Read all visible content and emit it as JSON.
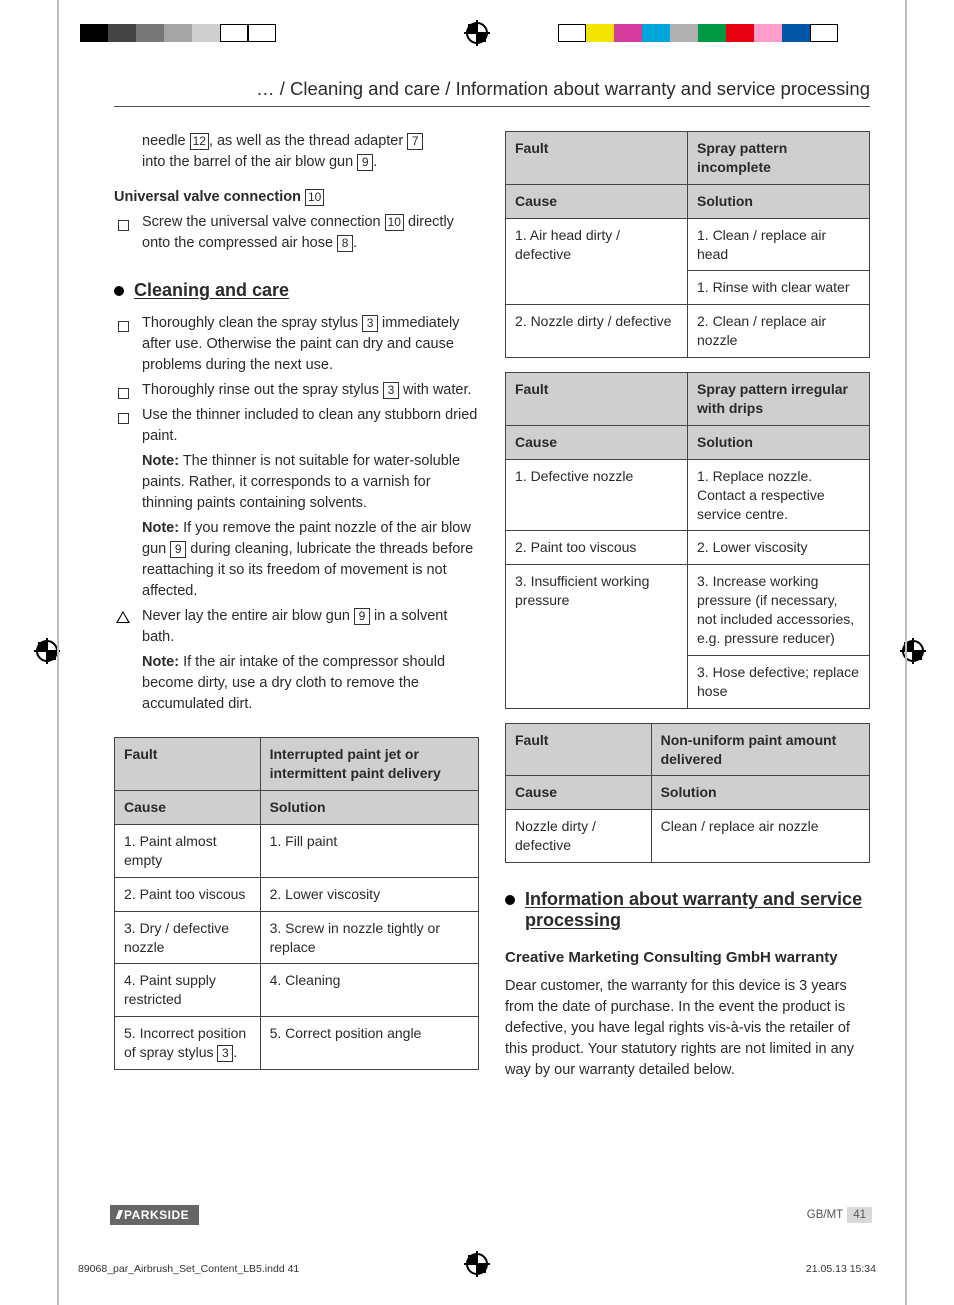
{
  "registration": {
    "left_colors": [
      "#000000",
      "#444444",
      "#777777",
      "#a5a5a5",
      "#cfcfcf",
      "#ffffff",
      "#ffffff"
    ],
    "right_colors": [
      "#ffffff",
      "#f2e400",
      "#d53a9d",
      "#00a5d9",
      "#b0b0b0",
      "#009944",
      "#e60012",
      "#ff9ecb",
      "#0055a5",
      "#ffffff"
    ]
  },
  "header": "… / Cleaning and care / Information about warranty and service processing",
  "left": {
    "intro1a": "needle ",
    "ref12": "12",
    "intro1b": ", as well as the thread adapter ",
    "ref7": "7",
    "intro2a": "into the barrel of the air blow gun ",
    "ref9": "9",
    "intro2b": ".",
    "uvc_title": "Universal valve connection",
    "ref10": "10",
    "uvc_a": "Screw the universal valve connection ",
    "uvc_b": " directly onto the compressed air hose ",
    "ref8": "8",
    "uvc_c": ".",
    "sec1": "Cleaning and care",
    "li1a": "Thoroughly clean the spray stylus ",
    "ref3": "3",
    "li1b": " immediately after use. Otherwise the paint can dry and cause problems during the next use.",
    "li2a": "Thoroughly rinse out the spray stylus ",
    "li2b": " with water.",
    "li3": "Use the thinner included to clean any stubborn dried paint.",
    "note1_label": "Note:",
    "note1": " The thinner is not suitable for water-soluble paints. Rather, it corresponds to a varnish for thinning paints containing solvents.",
    "note2_label": "Note:",
    "note2a": " If you remove the paint nozzle of the air blow gun ",
    "note2b": " during cleaning, lubricate the threads before reattaching it so its freedom of movement is not affected.",
    "warn_a": "Never lay the entire air blow gun ",
    "warn_b": " in a solvent bath.",
    "note3_label": "Note:",
    "note3": " If the air intake of the compressor should become dirty, use a dry cloth to remove the accumulated dirt.",
    "table1": {
      "fault_h": "Fault",
      "fault": "Interrupted paint jet or intermittent paint delivery",
      "cause_h": "Cause",
      "sol_h": "Solution",
      "rows": [
        {
          "c": "1. Paint almost empty",
          "s": "1. Fill paint"
        },
        {
          "c": "2. Paint too viscous",
          "s": "2. Lower viscosity"
        },
        {
          "c": "3. Dry / defective nozzle",
          "s": "3. Screw in nozzle tightly or replace"
        },
        {
          "c": "4. Paint supply restricted",
          "s": "4. Cleaning"
        }
      ],
      "row5_c_a": "5. Incorrect position of spray stylus ",
      "row5_c_b": ".",
      "row5_s": "5. Correct position angle"
    }
  },
  "right": {
    "tableA": {
      "fault_h": "Fault",
      "fault": "Spray pattern incomplete",
      "cause_h": "Cause",
      "sol_h": "Solution",
      "r1c": "1. Air head dirty / defective",
      "r1s1": "1. Clean / replace air head",
      "r1s2": "1. Rinse with clear water",
      "r2c": "2. Nozzle dirty / defective",
      "r2s": "2. Clean / replace air nozzle"
    },
    "tableB": {
      "fault_h": "Fault",
      "fault": "Spray pattern irregular with drips",
      "cause_h": "Cause",
      "sol_h": "Solution",
      "r1c": "1. Defective nozzle",
      "r1s": "1. Replace nozzle. Contact a respective service centre.",
      "r2c": "2. Paint too viscous",
      "r2s": "2. Lower viscosity",
      "r3c": "3. Insufficient working pressure",
      "r3s1": "3. Increase working pressure (if necessary, not included accessories, e.g. pressure reducer)",
      "r3s2": "3. Hose defective; replace hose"
    },
    "tableC": {
      "fault_h": "Fault",
      "fault": "Non-uniform paint amount delivered",
      "cause_h": "Cause",
      "sol_h": "Solution",
      "r1c": "Nozzle dirty / defective",
      "r1s": "Clean / replace air nozzle"
    },
    "sec2": "Information about warranty and service processing",
    "sub": "Creative Marketing Consulting GmbH warranty",
    "p": "Dear customer, the warranty for this device is 3 years from the date of purchase. In the event the product is defective, you have legal rights vis-à-vis the retailer of this product. Your statutory rights are not limited in any way by our warranty detailed below."
  },
  "footer": {
    "brand": "PARKSIDE",
    "region": "GB/MT",
    "page": "41",
    "indd": "89068_par_Airbrush_Set_Content_LB5.indd   41",
    "date": "21.05.13   15:34"
  }
}
